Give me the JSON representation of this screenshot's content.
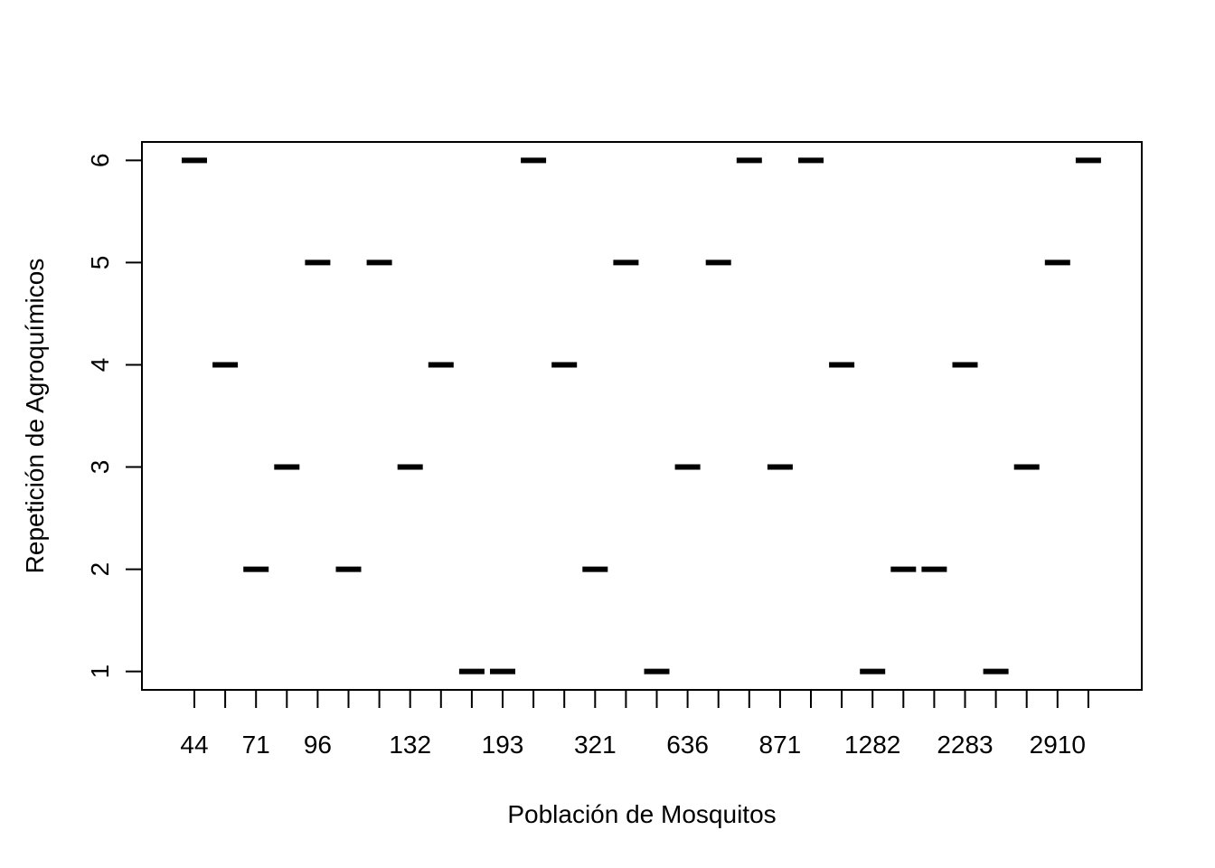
{
  "chart_data": {
    "type": "scatter",
    "xlabel": "Población de Mosquitos",
    "ylabel": "Repetición de Agroquímicos",
    "ylim": [
      0.82,
      6.18
    ],
    "y_ticks": [
      1,
      2,
      3,
      4,
      5,
      6
    ],
    "x_positions": 30,
    "x_tick_labels": [
      {
        "pos": 1,
        "label": "44"
      },
      {
        "pos": 3,
        "label": "71"
      },
      {
        "pos": 5,
        "label": "96"
      },
      {
        "pos": 8,
        "label": "132"
      },
      {
        "pos": 11,
        "label": "193"
      },
      {
        "pos": 14,
        "label": "321"
      },
      {
        "pos": 17,
        "label": "636"
      },
      {
        "pos": 20,
        "label": "871"
      },
      {
        "pos": 23,
        "label": "1282"
      },
      {
        "pos": 26,
        "label": "2283"
      },
      {
        "pos": 29,
        "label": "2910"
      }
    ],
    "values": [
      6,
      4,
      2,
      3,
      5,
      2,
      5,
      3,
      4,
      1,
      1,
      6,
      4,
      2,
      5,
      1,
      3,
      5,
      6,
      3,
      6,
      4,
      1,
      2,
      2,
      4,
      1,
      3,
      5,
      6
    ],
    "grid": false,
    "legend": "none",
    "colors": {
      "mark": "#000000",
      "axis": "#000000",
      "background": "#ffffff"
    }
  }
}
